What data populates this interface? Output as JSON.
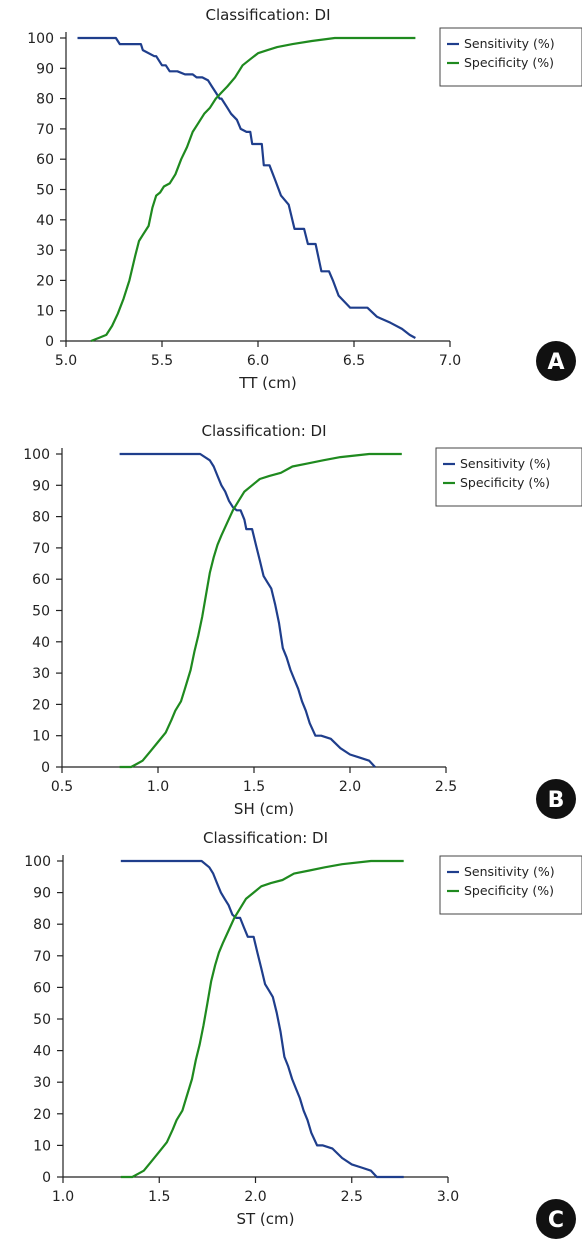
{
  "colors": {
    "sensitivity": "#1f3e8c",
    "specificity": "#1f8a1f"
  },
  "chart_data": [
    {
      "panel_label": "A",
      "type": "line",
      "title": "Classification: DI",
      "xlabel": "TT (cm)",
      "ylabel": "",
      "xlim": [
        5.0,
        7.0
      ],
      "ylim": [
        0,
        100
      ],
      "xticks": [
        "5.0",
        "5.5",
        "6.0",
        "6.5",
        "7.0"
      ],
      "yticks": [
        "0",
        "10",
        "20",
        "30",
        "40",
        "50",
        "60",
        "70",
        "80",
        "90",
        "100"
      ],
      "legend": [
        "Sensitivity (%)",
        "Specificity (%)"
      ],
      "legend_position": "top-right (outside)",
      "series": [
        {
          "name": "Sensitivity (%)",
          "color": "sensitivity",
          "x": [
            5.06,
            5.26,
            5.28,
            5.39,
            5.4,
            5.46,
            5.47,
            5.5,
            5.52,
            5.54,
            5.58,
            5.62,
            5.66,
            5.68,
            5.71,
            5.74,
            5.76,
            5.78,
            5.8,
            5.81,
            5.84,
            5.86,
            5.89,
            5.91,
            5.94,
            5.96,
            5.97,
            6.02,
            6.03,
            6.06,
            6.09,
            6.12,
            6.16,
            6.19,
            6.24,
            6.26,
            6.3,
            6.33,
            6.37,
            6.39,
            6.42,
            6.48,
            6.52,
            6.55,
            6.57,
            6.62,
            6.69,
            6.75,
            6.79,
            6.82
          ],
          "y": [
            100,
            100,
            98,
            98,
            96,
            94,
            94,
            91,
            91,
            89,
            89,
            88,
            88,
            87,
            87,
            86,
            84,
            82,
            80,
            80,
            77,
            75,
            73,
            70,
            69,
            69,
            65,
            65,
            58,
            58,
            53,
            48,
            45,
            37,
            37,
            32,
            32,
            23,
            23,
            20,
            15,
            11,
            11,
            11,
            11,
            8,
            6,
            4,
            2,
            1
          ]
        },
        {
          "name": "Specificity (%)",
          "color": "specificity",
          "x": [
            5.13,
            5.17,
            5.21,
            5.24,
            5.27,
            5.3,
            5.33,
            5.36,
            5.38,
            5.4,
            5.43,
            5.45,
            5.47,
            5.49,
            5.51,
            5.54,
            5.57,
            5.6,
            5.63,
            5.66,
            5.69,
            5.72,
            5.75,
            5.78,
            5.81,
            5.84,
            5.88,
            5.92,
            5.96,
            6.0,
            6.05,
            6.1,
            6.18,
            6.28,
            6.4,
            6.55,
            6.7,
            6.82
          ],
          "y": [
            0,
            1,
            2,
            5,
            9,
            14,
            20,
            28,
            33,
            35,
            38,
            44,
            48,
            49,
            51,
            52,
            55,
            60,
            64,
            69,
            72,
            75,
            77,
            80,
            82,
            84,
            87,
            91,
            93,
            95,
            96,
            97,
            98,
            99,
            100,
            100,
            100,
            100
          ]
        }
      ]
    },
    {
      "panel_label": "B",
      "type": "line",
      "title": "Classification: DI",
      "xlabel": "SH (cm)",
      "ylabel": "",
      "xlim": [
        0.5,
        2.5
      ],
      "ylim": [
        0,
        100
      ],
      "xticks": [
        "0.5",
        "1.0",
        "1.5",
        "2.0",
        "2.5"
      ],
      "yticks": [
        "0",
        "10",
        "20",
        "30",
        "40",
        "50",
        "60",
        "70",
        "80",
        "90",
        "100"
      ],
      "legend": [
        "Sensitivity (%)",
        "Specificity (%)"
      ],
      "legend_position": "top-right (outside)",
      "series": [
        {
          "name": "Sensitivity (%)",
          "color": "sensitivity",
          "x": [
            0.8,
            1.22,
            1.27,
            1.29,
            1.31,
            1.33,
            1.35,
            1.37,
            1.39,
            1.41,
            1.43,
            1.45,
            1.46,
            1.49,
            1.51,
            1.53,
            1.55,
            1.57,
            1.59,
            1.61,
            1.63,
            1.65,
            1.67,
            1.69,
            1.71,
            1.73,
            1.75,
            1.77,
            1.79,
            1.82,
            1.85,
            1.9,
            1.95,
            2.0,
            2.05,
            2.1,
            2.13
          ],
          "y": [
            100,
            100,
            98,
            96,
            93,
            90,
            88,
            85,
            83,
            82,
            82,
            79,
            76,
            76,
            71,
            66,
            61,
            59,
            57,
            52,
            46,
            38,
            35,
            31,
            28,
            25,
            21,
            18,
            14,
            10,
            10,
            9,
            6,
            4,
            3,
            2,
            0
          ]
        },
        {
          "name": "Specificity (%)",
          "color": "specificity",
          "x": [
            0.8,
            0.86,
            0.89,
            0.92,
            0.96,
            1.0,
            1.04,
            1.07,
            1.09,
            1.12,
            1.14,
            1.17,
            1.19,
            1.21,
            1.23,
            1.25,
            1.27,
            1.29,
            1.31,
            1.33,
            1.36,
            1.39,
            1.42,
            1.45,
            1.49,
            1.53,
            1.58,
            1.64,
            1.7,
            1.78,
            1.86,
            1.95,
            2.1,
            2.27
          ],
          "y": [
            0,
            0,
            1,
            2,
            5,
            8,
            11,
            15,
            18,
            21,
            25,
            31,
            37,
            42,
            48,
            55,
            62,
            67,
            71,
            74,
            78,
            82,
            85,
            88,
            90,
            92,
            93,
            94,
            96,
            97,
            98,
            99,
            100,
            100
          ]
        }
      ]
    },
    {
      "panel_label": "C",
      "type": "line",
      "title": "Classification: DI",
      "xlabel": "ST (cm)",
      "ylabel": "",
      "xlim": [
        1.0,
        3.0
      ],
      "ylim": [
        0,
        100
      ],
      "xticks": [
        "1.0",
        "1.5",
        "2.0",
        "2.5",
        "3.0"
      ],
      "yticks": [
        "0",
        "10",
        "20",
        "30",
        "40",
        "50",
        "60",
        "70",
        "80",
        "90",
        "100"
      ],
      "legend": [
        "Sensitivity (%)",
        "Specificity (%)"
      ],
      "legend_position": "top-right (outside)",
      "series": [
        {
          "name": "Sensitivity (%)",
          "color": "sensitivity",
          "x": [
            1.3,
            1.72,
            1.76,
            1.78,
            1.8,
            1.82,
            1.84,
            1.86,
            1.88,
            1.9,
            1.92,
            1.94,
            1.96,
            1.99,
            2.01,
            2.03,
            2.05,
            2.07,
            2.09,
            2.11,
            2.13,
            2.15,
            2.17,
            2.19,
            2.21,
            2.23,
            2.25,
            2.27,
            2.29,
            2.32,
            2.35,
            2.4,
            2.45,
            2.5,
            2.55,
            2.6,
            2.63,
            2.7,
            2.77
          ],
          "y": [
            100,
            100,
            98,
            96,
            93,
            90,
            88,
            86,
            83,
            82,
            82,
            79,
            76,
            76,
            71,
            66,
            61,
            59,
            57,
            52,
            46,
            38,
            35,
            31,
            28,
            25,
            21,
            18,
            14,
            10,
            10,
            9,
            6,
            4,
            3,
            2,
            0,
            0,
            0
          ]
        },
        {
          "name": "Specificity (%)",
          "color": "specificity",
          "x": [
            1.3,
            1.36,
            1.39,
            1.42,
            1.46,
            1.5,
            1.54,
            1.57,
            1.59,
            1.62,
            1.64,
            1.67,
            1.69,
            1.71,
            1.73,
            1.75,
            1.77,
            1.79,
            1.81,
            1.83,
            1.86,
            1.89,
            1.92,
            1.95,
            1.99,
            2.03,
            2.08,
            2.14,
            2.2,
            2.28,
            2.36,
            2.45,
            2.6,
            2.77
          ],
          "y": [
            0,
            0,
            1,
            2,
            5,
            8,
            11,
            15,
            18,
            21,
            25,
            31,
            37,
            42,
            48,
            55,
            62,
            67,
            71,
            74,
            78,
            82,
            85,
            88,
            90,
            92,
            93,
            94,
            96,
            97,
            98,
            99,
            100,
            100
          ]
        }
      ]
    }
  ]
}
